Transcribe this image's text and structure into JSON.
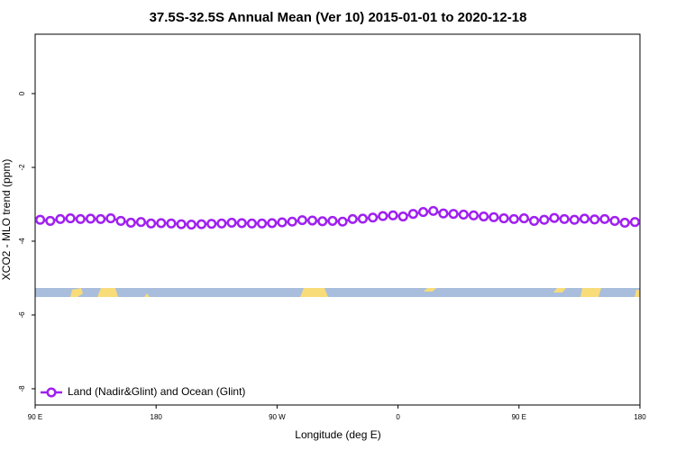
{
  "chart_data": {
    "type": "line",
    "title": "37.5S-32.5S Annual Mean (Ver 10)   2015-01-01 to 2020-12-18",
    "x_label": "Longitude (deg E)",
    "y_label": "XCO2 - MLO trend (ppm)",
    "xlim": [
      90,
      540
    ],
    "xticks": [
      {
        "value": 90,
        "label": "90 E"
      },
      180,
      {
        "value": 270,
        "label": "90 W"
      },
      {
        "value": 360,
        "label": "0"
      },
      {
        "value": 450,
        "label": "90 E"
      },
      {
        "value": 540,
        "label": "180"
      }
    ],
    "ylim": [
      -8.44,
      1.61
    ],
    "yticks": [
      0,
      -2,
      -4,
      -6,
      -8
    ],
    "legend": "bottom-left",
    "series": [
      {
        "name": "Land (Nadir&Glint) and Ocean (Glint)",
        "color": "#a020f0",
        "x": [
          93.75,
          101.25,
          108.75,
          116.25,
          123.75,
          131.25,
          138.75,
          146.25,
          153.75,
          161.25,
          168.75,
          176.25,
          183.75,
          191.25,
          198.75,
          206.25,
          213.75,
          221.25,
          228.75,
          236.25,
          243.75,
          251.25,
          258.75,
          266.25,
          273.75,
          281.25,
          288.75,
          296.25,
          303.75,
          311.25,
          318.75,
          326.25,
          333.75,
          341.25,
          348.75,
          356.25,
          363.75,
          371.25,
          378.75,
          386.25,
          393.75,
          401.25,
          408.75,
          416.25,
          423.75,
          431.25,
          438.75,
          446.25,
          453.75,
          461.25,
          468.75,
          476.25,
          483.75,
          491.25,
          498.75,
          506.25,
          513.75,
          521.25,
          528.75,
          536.25
        ],
        "values": [
          -3.42,
          -3.45,
          -3.4,
          -3.38,
          -3.4,
          -3.39,
          -3.4,
          -3.38,
          -3.45,
          -3.5,
          -3.48,
          -3.52,
          -3.51,
          -3.52,
          -3.54,
          -3.55,
          -3.54,
          -3.53,
          -3.52,
          -3.5,
          -3.51,
          -3.52,
          -3.52,
          -3.51,
          -3.49,
          -3.47,
          -3.43,
          -3.44,
          -3.46,
          -3.45,
          -3.47,
          -3.4,
          -3.39,
          -3.36,
          -3.32,
          -3.3,
          -3.33,
          -3.26,
          -3.21,
          -3.18,
          -3.25,
          -3.26,
          -3.28,
          -3.3,
          -3.33,
          -3.35,
          -3.38,
          -3.4,
          -3.38,
          -3.45,
          -3.42,
          -3.37,
          -3.4,
          -3.42,
          -3.39,
          -3.41,
          -3.4,
          -3.45,
          -3.5,
          -3.48
        ]
      }
    ]
  }
}
